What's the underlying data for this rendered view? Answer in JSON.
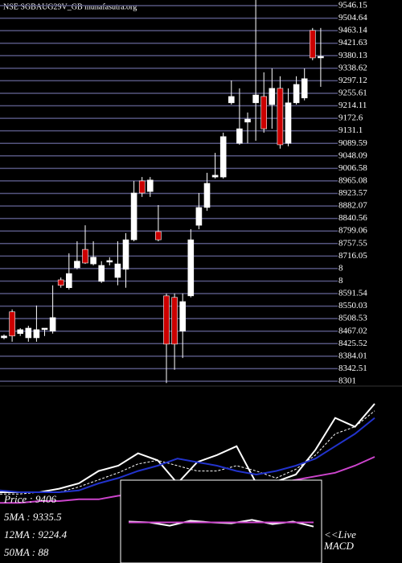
{
  "chart_data": [
    {
      "type": "candlestick",
      "title": "NSE SGBAUG29V_GB munafasutra.org",
      "ylim": [
        8301,
        9546.15
      ],
      "yticks": [
        9546.15,
        9504.64,
        9463.14,
        9421.63,
        9380.13,
        9338.62,
        9297.12,
        9255.61,
        9214.11,
        9172.6,
        9131.1,
        9089.59,
        9048.09,
        9006.58,
        8965.08,
        8923.57,
        8882.07,
        8840.56,
        8799.06,
        8757.55,
        8716.05,
        {
          "value": 8674.54,
          "label": "8"
        },
        {
          "value": 8633.04,
          "label": "8"
        },
        8591.54,
        8550.03,
        8508.53,
        8467.02,
        8425.52,
        8384.01,
        8342.51,
        8301
      ],
      "grid": true,
      "up_color": "#ffffff",
      "down_color": "#cc0000",
      "grid_color": "#55557f",
      "open": [
        8445,
        8531,
        8459,
        8445,
        8445,
        8472,
        8467,
        8637,
        8611,
        8677,
        8738,
        8690,
        8632,
        8696,
        8645,
        8672,
        8770,
        8965,
        8930,
        8797,
        8584,
        8579,
        8467,
        8584,
        8818,
        8877,
        8978,
        8978,
        9224,
        9090,
        9160,
        9224,
        9245,
        9218,
        9272,
        9090,
        9224,
        9240,
        9464,
        9373
      ],
      "high": [
        8456,
        8539,
        8477,
        8485,
        8552,
        8477,
        8619,
        8645,
        8725,
        8765,
        8818,
        8765,
        8699,
        8712,
        8765,
        8792,
        8965,
        8978,
        8978,
        8885,
        8592,
        8592,
        8592,
        8805,
        8925,
        8992,
        9058,
        9125,
        9298,
        9272,
        9192,
        9565,
        9325,
        9338,
        9312,
        9272,
        9312,
        9338,
        9472,
        9472
      ],
      "low": [
        8440,
        8432,
        8451,
        8432,
        8432,
        8451,
        8459,
        8611,
        8605,
        8672,
        8690,
        8685,
        8627,
        8685,
        8619,
        8611,
        8765,
        8912,
        8912,
        8765,
        8295,
        8339,
        8378,
        8579,
        8805,
        8866,
        8973,
        8973,
        9218,
        9085,
        9090,
        9098,
        9125,
        9138,
        9072,
        9080,
        9218,
        9232,
        9365,
        9277
      ],
      "close": [
        8451,
        8451,
        8472,
        8477,
        8472,
        8477,
        8512,
        8619,
        8658,
        8699,
        8693,
        8712,
        8685,
        8701,
        8690,
        8770,
        8925,
        8925,
        8968,
        8770,
        8424,
        8424,
        8565,
        8770,
        8877,
        8957,
        8984,
        9112,
        9245,
        9138,
        9170,
        9250,
        9138,
        9272,
        9085,
        9224,
        9285,
        9304,
        9373,
        9378
      ]
    },
    {
      "type": "line",
      "ylim": [
        0,
        100
      ],
      "categories": [
        null,
        null,
        null,
        null,
        null,
        null,
        null,
        null,
        null,
        null,
        null,
        null,
        null,
        null,
        null,
        null,
        null,
        null,
        null,
        null
      ],
      "annotations": [
        "Price : 9406",
        "5MA : 9335.5",
        "12MA : 9224.4",
        "50MA : 88"
      ],
      "series": [
        {
          "color": "#ffffff",
          "dash": false,
          "values": [
            40,
            40,
            40,
            42,
            45,
            52,
            55,
            62,
            58,
            45,
            57,
            61,
            66,
            45,
            46,
            50,
            64,
            82,
            77,
            90
          ]
        },
        {
          "color": "#ffffff",
          "dash": true,
          "values": [
            39,
            39,
            40,
            40,
            43,
            47,
            51,
            56,
            58,
            55,
            52,
            52,
            55,
            52,
            48,
            53,
            61,
            73,
            77,
            86
          ]
        },
        {
          "color": "#2233cc",
          "dash": false,
          "values": [
            41,
            40,
            40,
            40,
            41,
            45,
            48,
            52,
            55,
            59,
            57,
            55,
            52,
            50,
            52,
            55,
            59,
            66,
            73,
            82
          ]
        },
        {
          "color": "#cc44cc",
          "dash": false,
          "values": [
            34,
            34,
            35,
            35,
            36,
            36,
            38,
            39,
            40,
            41,
            42,
            42,
            43,
            44,
            45,
            47,
            49,
            51,
            55,
            60
          ]
        }
      ]
    },
    {
      "type": "line",
      "ylim": [
        0,
        100
      ],
      "categories": [
        null,
        null,
        null,
        null,
        null,
        null,
        null,
        null,
        null,
        null
      ],
      "annotations": [
        "<<Live",
        "MACD"
      ],
      "series": [
        {
          "color": "#ffffff",
          "dash": false,
          "values": [
            50,
            49,
            45,
            51,
            49,
            48,
            52,
            47,
            50,
            44
          ]
        },
        {
          "color": "#cc44cc",
          "dash": false,
          "values": [
            49,
            49,
            49,
            49,
            49,
            49,
            49,
            49,
            49,
            49
          ]
        }
      ]
    }
  ]
}
